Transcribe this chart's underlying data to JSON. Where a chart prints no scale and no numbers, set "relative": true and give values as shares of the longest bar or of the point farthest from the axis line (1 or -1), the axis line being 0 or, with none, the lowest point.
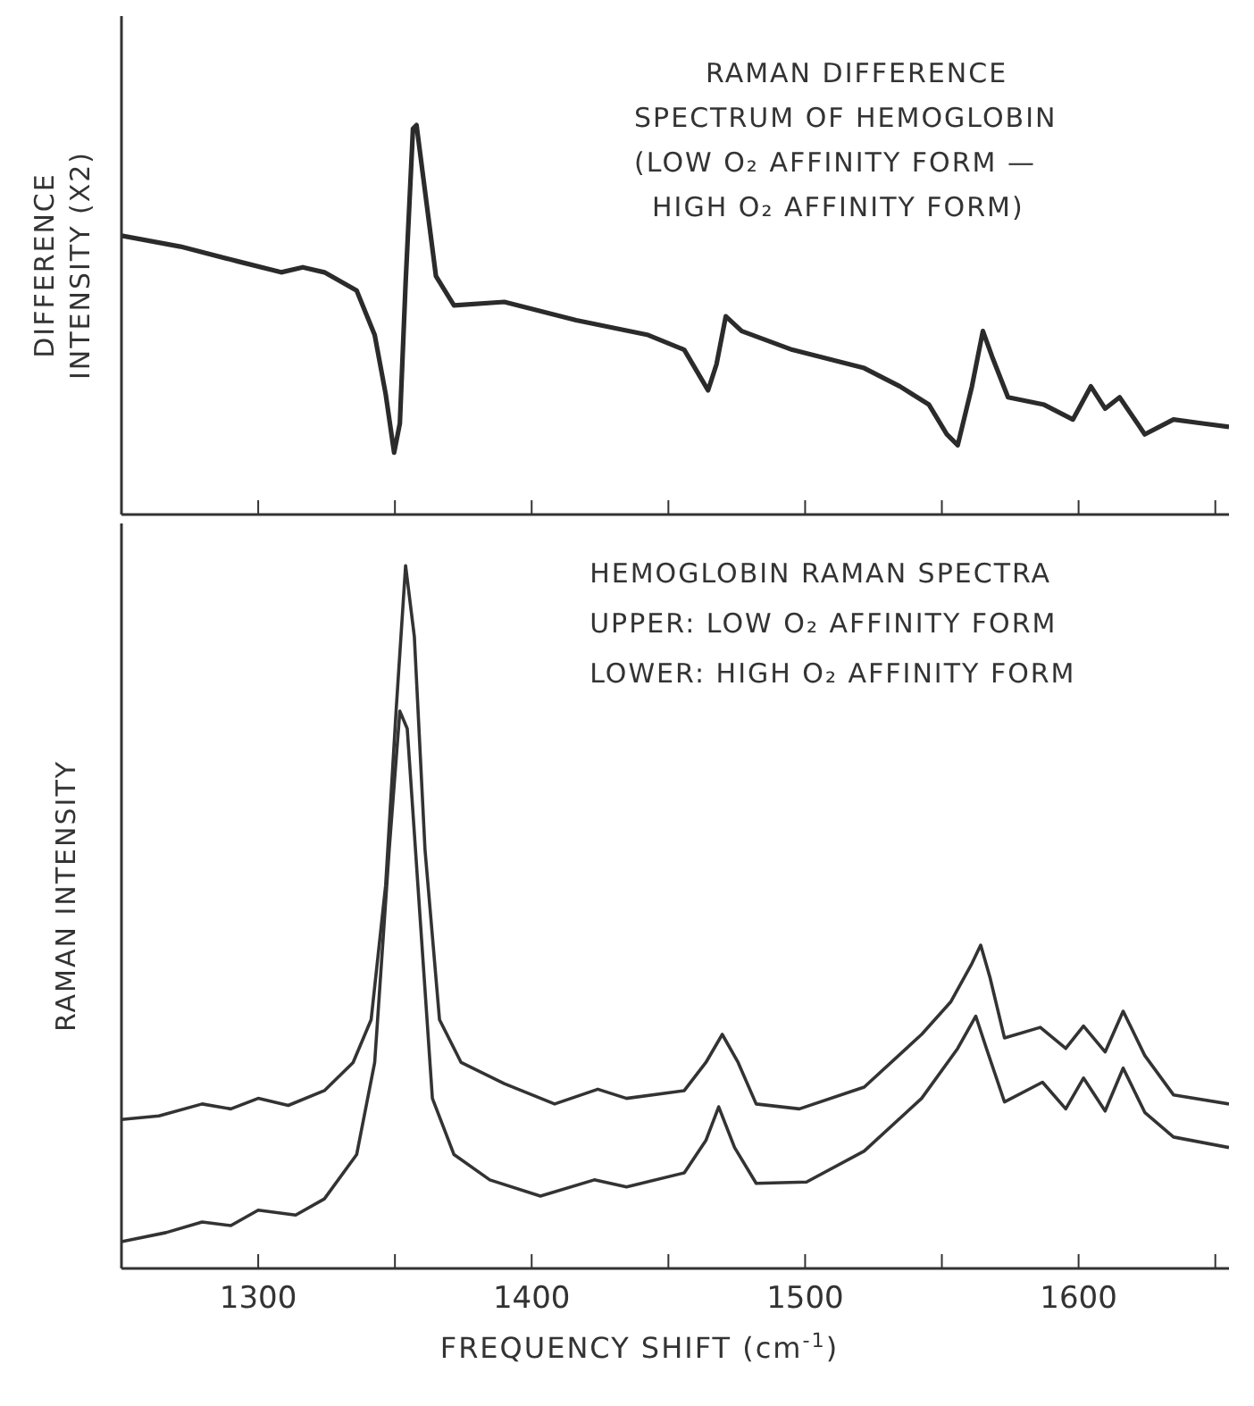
{
  "chart_data": [
    {
      "type": "line",
      "relative": true,
      "ylabel": "DIFFERENCE INTENSITY (X2)",
      "xlim": [
        1250,
        1655
      ],
      "xticks": [
        {
          "value": 1300,
          "label": null
        },
        {
          "value": 1350,
          "label": null
        },
        {
          "value": 1400,
          "label": null
        },
        {
          "value": 1450,
          "label": null
        },
        {
          "value": 1500,
          "label": null
        },
        {
          "value": 1550,
          "label": null
        },
        {
          "value": 1600,
          "label": null
        },
        {
          "value": 1650,
          "label": null
        }
      ],
      "tick_labels": false,
      "marker": "none",
      "line_style": "solid",
      "annotations": [
        "RAMAN DIFFERENCE",
        "SPECTRUM OF HEMOGLOBIN",
        "(LOW O₂ AFFINITY FORM —",
        "HIGH O₂ AFFINITY FORM)"
      ],
      "series": [
        {
          "color": "#2b2b2b",
          "x": [
            1250,
            1271.6,
            1292.6,
            1308.4,
            1316.3,
            1324.2,
            1336,
            1342.6,
            1346.6,
            1349.7,
            1351.8,
            1353.9,
            1356.6,
            1357.9,
            1360.5,
            1365,
            1371.6,
            1390,
            1416.3,
            1442.6,
            1455.8,
            1464.5,
            1467.6,
            1471,
            1476.8,
            1495.3,
            1521.6,
            1534.7,
            1545.3,
            1551.8,
            1555.8,
            1561,
            1565,
            1568.4,
            1574.2,
            1587.4,
            1597.9,
            1604.5,
            1609.7,
            1615,
            1624.2,
            1634.7,
            1645.3,
            1655
          ],
          "values": [
            0.716,
            0.688,
            0.65,
            0.622,
            0.635,
            0.622,
            0.575,
            0.461,
            0.31,
            0.159,
            0.234,
            0.594,
            0.991,
            1.0,
            0.858,
            0.612,
            0.537,
            0.546,
            0.499,
            0.461,
            0.423,
            0.319,
            0.386,
            0.509,
            0.471,
            0.423,
            0.376,
            0.329,
            0.282,
            0.206,
            0.178,
            0.329,
            0.471,
            0.405,
            0.301,
            0.282,
            0.244,
            0.329,
            0.272,
            0.301,
            0.206,
            0.244,
            0.234,
            0.225
          ]
        }
      ]
    },
    {
      "type": "line",
      "relative": true,
      "ylabel": "RAMAN INTENSITY",
      "xlabel": "FREQUENCY SHIFT (cm$^{-1}$)",
      "xlim": [
        1250,
        1655
      ],
      "xticks": [
        1300,
        {
          "value": 1350,
          "label": null
        },
        1400,
        {
          "value": 1450,
          "label": null
        },
        1500,
        {
          "value": 1550,
          "label": null
        },
        1600,
        {
          "value": 1650,
          "label": null
        }
      ],
      "tick_labels": "x",
      "marker": "none",
      "line_style": "solid",
      "annotations": [
        "HEMOGLOBIN RAMAN SPECTRA",
        "UPPER: LOW O₂ AFFINITY FORM",
        "LOWER: HIGH O₂ AFFINITY FORM"
      ],
      "series": [
        {
          "color": "#333333",
          "x": [
            1250,
            1263.7,
            1279.5,
            1290,
            1300,
            1311,
            1324.2,
            1334.7,
            1341.3,
            1346.6,
            1350.5,
            1353.9,
            1357.1,
            1361,
            1366.3,
            1374.2,
            1390,
            1408.4,
            1424.2,
            1434.7,
            1455.8,
            1463.7,
            1469.7,
            1475.5,
            1482.1,
            1497.9,
            1521.6,
            1542.6,
            1553.2,
            1561,
            1564.2,
            1567.6,
            1572.9,
            1586,
            1595.3,
            1601.8,
            1609.7,
            1616.3,
            1624.2,
            1634.7,
            1655
          ],
          "values": [
            0.212,
            0.217,
            0.234,
            0.227,
            0.242,
            0.232,
            0.253,
            0.293,
            0.354,
            0.545,
            0.798,
            1.0,
            0.899,
            0.596,
            0.354,
            0.293,
            0.263,
            0.234,
            0.255,
            0.242,
            0.253,
            0.293,
            0.333,
            0.293,
            0.234,
            0.227,
            0.258,
            0.333,
            0.379,
            0.434,
            0.46,
            0.414,
            0.328,
            0.343,
            0.313,
            0.345,
            0.308,
            0.366,
            0.303,
            0.247,
            0.234
          ]
        },
        {
          "color": "#333333",
          "x": [
            1250,
            1266.3,
            1279.5,
            1290,
            1300,
            1313.7,
            1324.2,
            1336,
            1342.6,
            1347.9,
            1351.8,
            1354.5,
            1358.4,
            1363.7,
            1371.6,
            1384.7,
            1403.2,
            1422.9,
            1434.7,
            1455.8,
            1463.7,
            1468.4,
            1474.2,
            1482.1,
            1500.5,
            1521.6,
            1542.6,
            1555.8,
            1562.4,
            1566.3,
            1572.9,
            1586.8,
            1595.3,
            1601.8,
            1609.7,
            1616.3,
            1624.2,
            1634.7,
            1655
          ],
          "values": [
            0.038,
            0.051,
            0.066,
            0.061,
            0.083,
            0.076,
            0.099,
            0.162,
            0.293,
            0.596,
            0.793,
            0.768,
            0.545,
            0.242,
            0.162,
            0.126,
            0.103,
            0.126,
            0.116,
            0.136,
            0.182,
            0.23,
            0.172,
            0.121,
            0.123,
            0.167,
            0.242,
            0.313,
            0.359,
            0.313,
            0.237,
            0.265,
            0.227,
            0.271,
            0.224,
            0.285,
            0.222,
            0.187,
            0.172
          ]
        }
      ]
    }
  ]
}
